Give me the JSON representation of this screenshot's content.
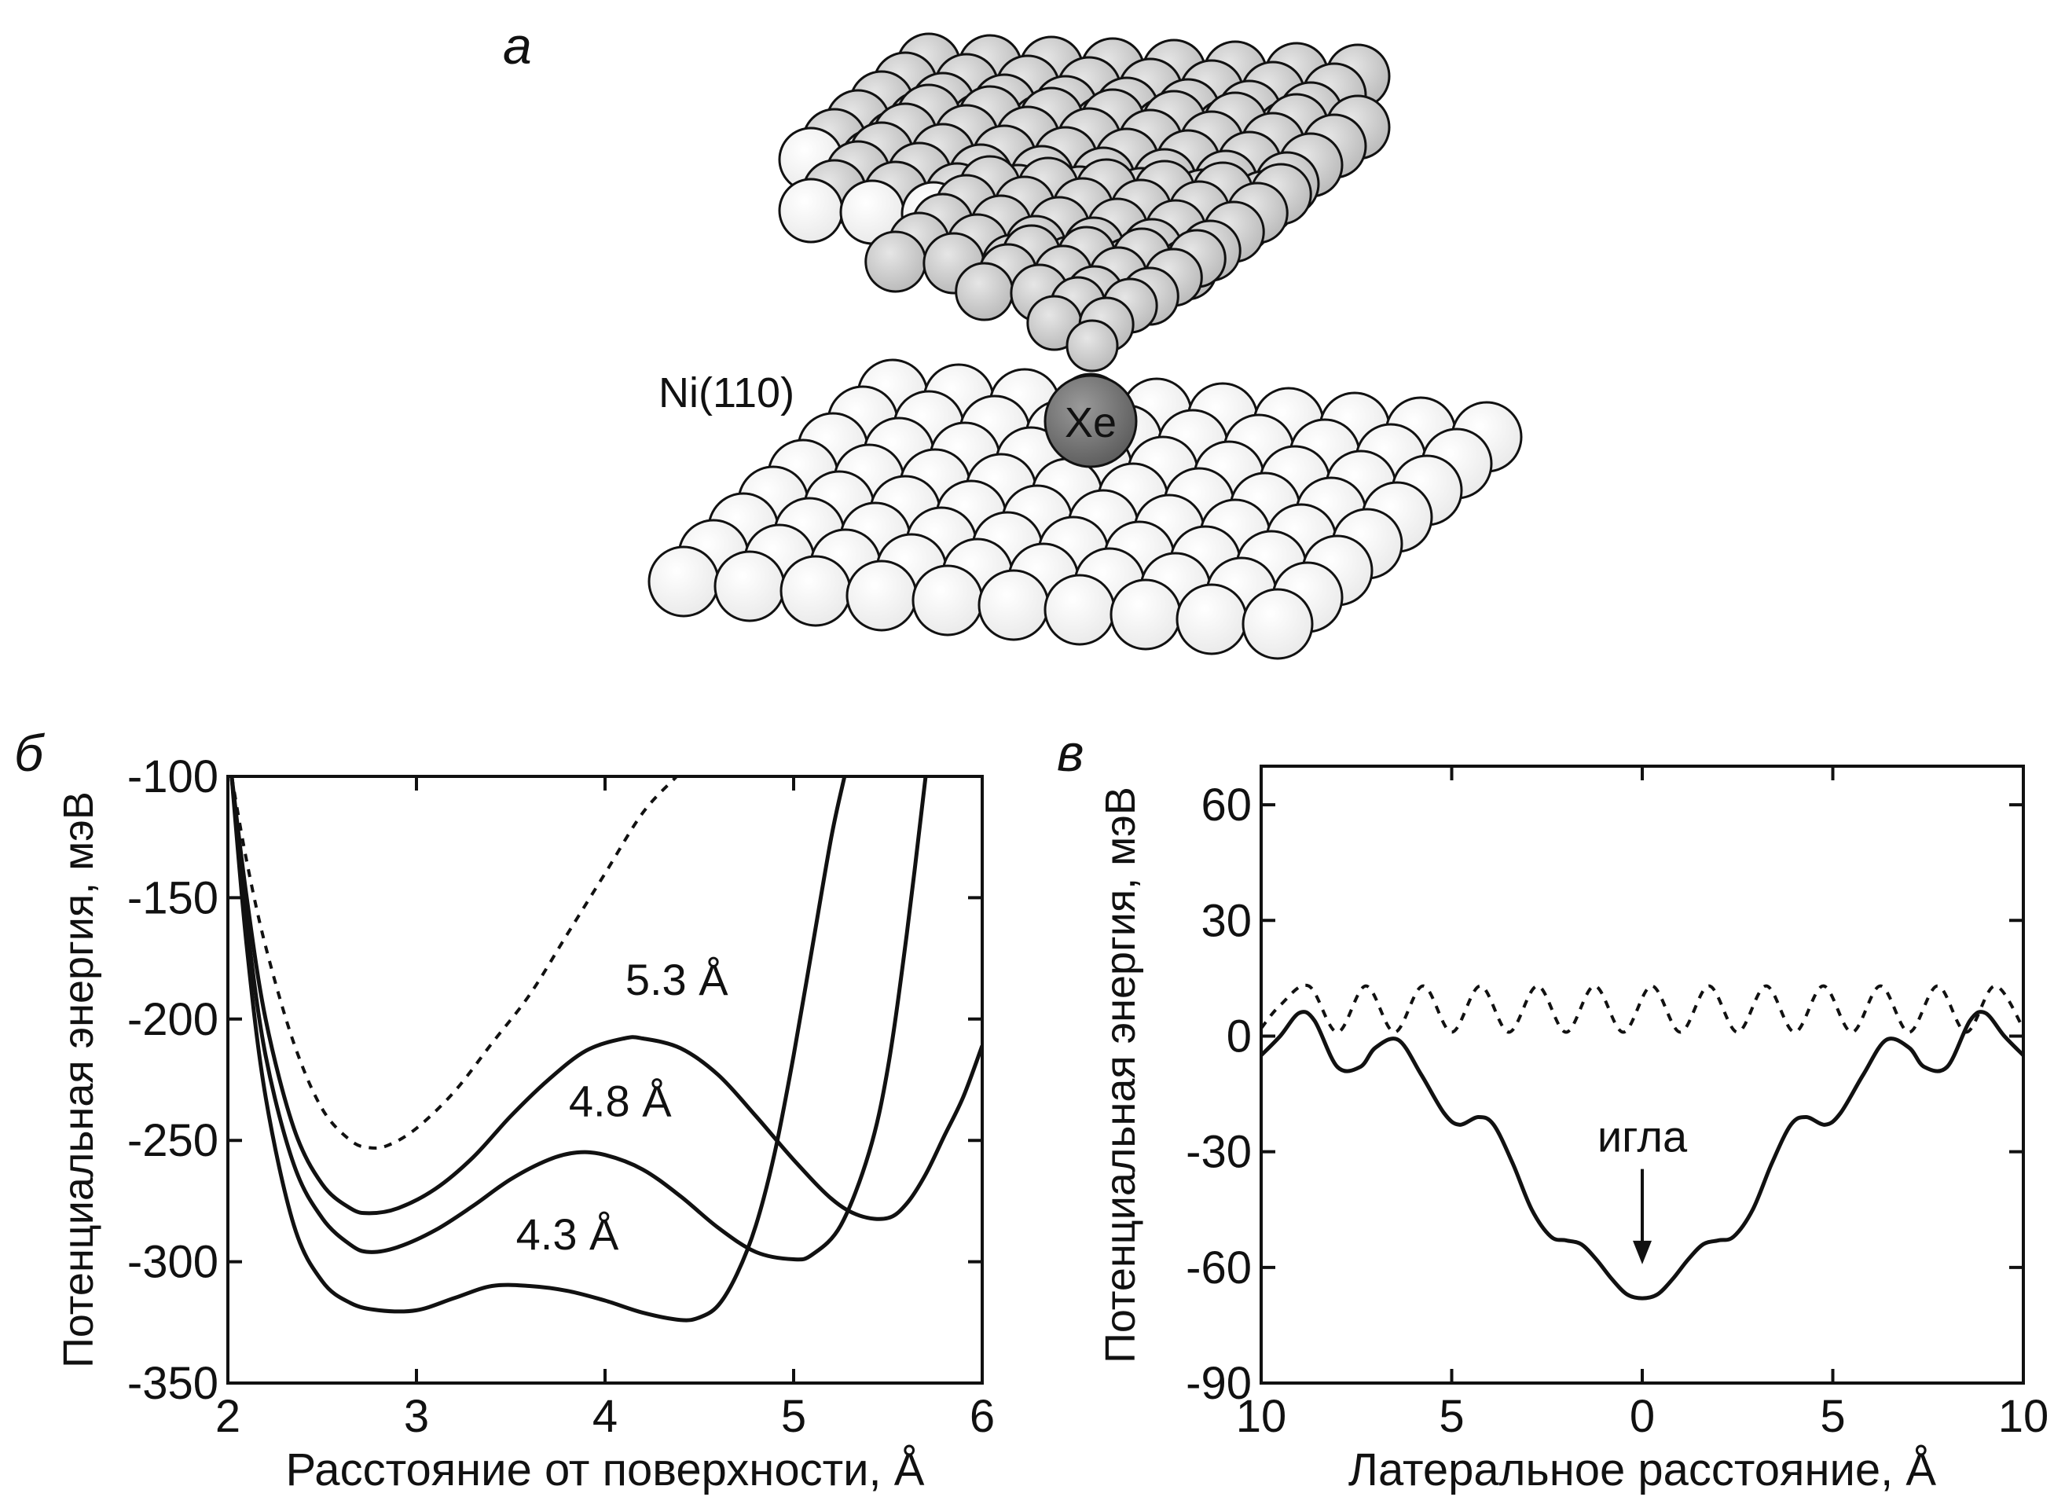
{
  "panels": {
    "a": {
      "letter": "а",
      "surface_label": "Ni(110)",
      "atom_label": "Xe"
    },
    "b": {
      "letter": "б"
    },
    "c": {
      "letter": "в"
    }
  },
  "chart_data": [
    {
      "type": "line",
      "panel": "б",
      "xlabel": "Расстояние от поверхности, Å",
      "ylabel": "Потенциальная энергия, мэВ",
      "xlim": [
        2,
        6
      ],
      "ylim": [
        -350,
        -100
      ],
      "xticks": [
        2,
        3,
        4,
        5,
        6
      ],
      "yticks": [
        -350,
        -300,
        -250,
        -200,
        -150,
        -100
      ],
      "grid": false,
      "series": [
        {
          "style": "dotted",
          "x": [
            2.02,
            2.1,
            2.2,
            2.35,
            2.5,
            2.65,
            2.75,
            2.85,
            3.0,
            3.2,
            3.4,
            3.6,
            3.8,
            4.0,
            4.2,
            4.38
          ],
          "y": [
            -100,
            -135,
            -170,
            -210,
            -237,
            -250,
            -253,
            -252,
            -245,
            -230,
            -210,
            -190,
            -165,
            -140,
            -115,
            -100
          ]
        },
        {
          "name": "5.3 Å",
          "style": "solid",
          "x": [
            2.02,
            2.1,
            2.2,
            2.35,
            2.5,
            2.65,
            2.75,
            2.9,
            3.1,
            3.3,
            3.5,
            3.7,
            3.9,
            4.1,
            4.2,
            4.4,
            4.6,
            4.8,
            5.0,
            5.2,
            5.35,
            5.5,
            5.6,
            5.7,
            5.8,
            5.9,
            6.0
          ],
          "y": [
            -100,
            -150,
            -200,
            -245,
            -268,
            -278,
            -280,
            -278,
            -270,
            -257,
            -240,
            -225,
            -213,
            -208,
            -208,
            -212,
            -223,
            -240,
            -258,
            -274,
            -281,
            -282,
            -276,
            -264,
            -248,
            -232,
            -211
          ]
        },
        {
          "name": "4.8 Å",
          "style": "solid",
          "x": [
            2.02,
            2.1,
            2.2,
            2.35,
            2.5,
            2.65,
            2.75,
            2.9,
            3.1,
            3.3,
            3.5,
            3.7,
            3.85,
            4.0,
            4.2,
            4.4,
            4.6,
            4.8,
            5.0,
            5.1,
            5.25,
            5.4,
            5.5,
            5.6,
            5.7
          ],
          "y": [
            -100,
            -160,
            -215,
            -260,
            -282,
            -293,
            -296,
            -294,
            -287,
            -277,
            -266,
            -258,
            -255,
            -256,
            -262,
            -273,
            -286,
            -296,
            -299,
            -297,
            -285,
            -255,
            -220,
            -165,
            -100
          ]
        },
        {
          "name": "4.3 Å",
          "style": "solid",
          "x": [
            2.02,
            2.1,
            2.2,
            2.35,
            2.5,
            2.65,
            2.8,
            3.0,
            3.2,
            3.4,
            3.6,
            3.8,
            4.0,
            4.2,
            4.4,
            4.5,
            4.6,
            4.7,
            4.8,
            4.9,
            5.0,
            5.1,
            5.2,
            5.27
          ],
          "y": [
            -100,
            -170,
            -232,
            -285,
            -308,
            -317,
            -320,
            -320,
            -315,
            -310,
            -310,
            -312,
            -316,
            -321,
            -324,
            -323,
            -318,
            -305,
            -285,
            -255,
            -215,
            -170,
            -125,
            -100
          ]
        }
      ],
      "annotations": [
        {
          "text": "5.3 Å",
          "x": 4.38,
          "y": -190
        },
        {
          "text": "4.8 Å",
          "x": 4.08,
          "y": -240
        },
        {
          "text": "4.3 Å",
          "x": 3.8,
          "y": -295
        }
      ]
    },
    {
      "type": "line",
      "panel": "в",
      "xlabel": "Латеральное расстояние, Å",
      "ylabel": "Потенциальная энергия, мэВ",
      "xlim": [
        -10,
        10
      ],
      "ylim": [
        -90,
        70
      ],
      "xticks": [
        -10,
        -5,
        0,
        5,
        10
      ],
      "xticklabels": [
        "10",
        "5",
        "0",
        "5",
        "10"
      ],
      "yticks": [
        -90,
        -60,
        -30,
        0,
        30,
        60
      ],
      "grid": false,
      "series": [
        {
          "style": "dotted",
          "x": [
            -10,
            -9.5,
            -8.75,
            -8.0,
            -7.25,
            -6.5,
            -5.75,
            -5.0,
            -4.25,
            -3.5,
            -2.75,
            -2.0,
            -1.25,
            -0.5,
            0.25,
            1.0,
            1.75,
            2.5,
            3.25,
            4.0,
            4.75,
            5.5,
            6.25,
            7.0,
            7.75,
            8.5,
            9.25,
            10
          ],
          "y": [
            2,
            8,
            13,
            1,
            13,
            1,
            13,
            1,
            13,
            1,
            13,
            1,
            13,
            1,
            13,
            1,
            13,
            1,
            13,
            1,
            13,
            1,
            13,
            1,
            13,
            1,
            13,
            2
          ]
        },
        {
          "style": "solid",
          "x": [
            -10,
            -9.5,
            -9.0,
            -8.6,
            -8.0,
            -7.4,
            -7.0,
            -6.4,
            -5.8,
            -5.2,
            -4.8,
            -4.3,
            -3.9,
            -3.4,
            -2.9,
            -2.4,
            -2.0,
            -1.6,
            -1.2,
            -0.8,
            -0.4,
            0,
            0.4,
            0.8,
            1.2,
            1.6,
            2.0,
            2.4,
            2.9,
            3.4,
            3.9,
            4.3,
            4.8,
            5.2,
            5.8,
            6.4,
            7.0,
            7.4,
            8.0,
            8.6,
            9.0,
            9.5,
            10
          ],
          "y": [
            -5,
            0,
            6,
            4,
            -8,
            -8,
            -3,
            -1,
            -10,
            -20,
            -23,
            -21,
            -23,
            -33,
            -45,
            -52,
            -53,
            -54,
            -58,
            -63,
            -67,
            -68,
            -67,
            -63,
            -58,
            -54,
            -53,
            -52,
            -45,
            -33,
            -23,
            -21,
            -23,
            -20,
            -10,
            -1,
            -3,
            -8,
            -8,
            4,
            6,
            0,
            -5
          ]
        }
      ],
      "annotations": [
        {
          "text": "игла",
          "x": 0,
          "y": -30,
          "arrow_to_y": -60
        }
      ]
    }
  ]
}
